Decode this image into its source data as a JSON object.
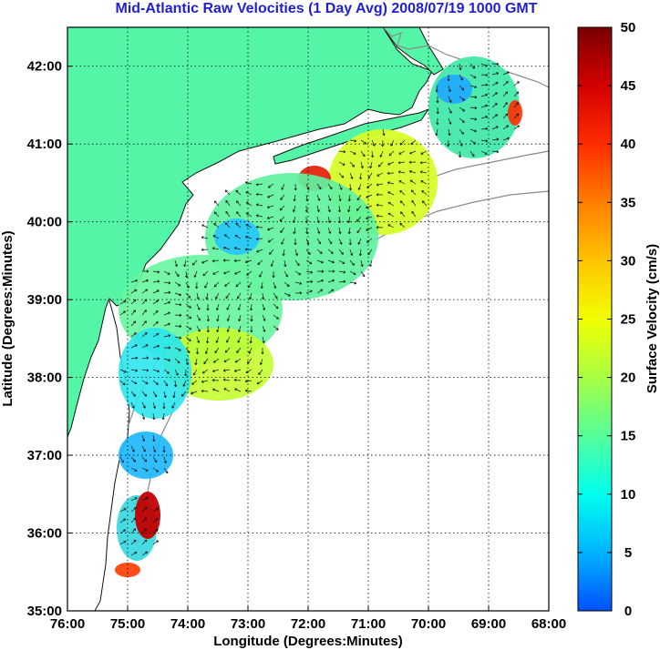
{
  "title": "Mid-Atlantic Raw Velocities (1 Day Avg) 2008/07/19 1000 GMT",
  "x_axis": {
    "label": "Longitude (Degrees:Minutes)",
    "ticks": [
      {
        "value": -76,
        "label": "76:00"
      },
      {
        "value": -75,
        "label": "75:00"
      },
      {
        "value": -74,
        "label": "74:00"
      },
      {
        "value": -73,
        "label": "73:00"
      },
      {
        "value": -72,
        "label": "72:00"
      },
      {
        "value": -71,
        "label": "71:00"
      },
      {
        "value": -70,
        "label": "70:00"
      },
      {
        "value": -69,
        "label": "69:00"
      },
      {
        "value": -68,
        "label": "68:00"
      }
    ],
    "range": [
      -76,
      -68
    ]
  },
  "y_axis": {
    "label": "Latitude (Degrees:Minutes)",
    "ticks": [
      {
        "value": 35,
        "label": "35:00"
      },
      {
        "value": 36,
        "label": "36:00"
      },
      {
        "value": 37,
        "label": "37:00"
      },
      {
        "value": 38,
        "label": "38:00"
      },
      {
        "value": 39,
        "label": "39:00"
      },
      {
        "value": 40,
        "label": "40:00"
      },
      {
        "value": 41,
        "label": "41:00"
      },
      {
        "value": 42,
        "label": "42:00"
      }
    ],
    "range": [
      35,
      42.5
    ]
  },
  "colorbar": {
    "label": "Surface Velocity (cm/s)",
    "range": [
      0,
      50
    ],
    "ticks": [
      {
        "value": 0,
        "label": "0"
      },
      {
        "value": 5,
        "label": "5"
      },
      {
        "value": 10,
        "label": "10"
      },
      {
        "value": 15,
        "label": "15"
      },
      {
        "value": 20,
        "label": "20"
      },
      {
        "value": 25,
        "label": "25"
      },
      {
        "value": 30,
        "label": "30"
      },
      {
        "value": 35,
        "label": "35"
      },
      {
        "value": 40,
        "label": "40"
      },
      {
        "value": 45,
        "label": "45"
      },
      {
        "value": 50,
        "label": "50"
      }
    ],
    "colormap": [
      "#0050ff",
      "#00b4ff",
      "#00ffee",
      "#55ff9a",
      "#a8ff44",
      "#f2ff00",
      "#ffc400",
      "#ff7e00",
      "#ff2c00",
      "#d40000",
      "#7a0000"
    ]
  },
  "colors": {
    "land": "#55f5a7",
    "coastline": "#111111",
    "bathymetry": "#8a8a8a",
    "grid": "#000000",
    "title": "#1f1fd6"
  }
}
